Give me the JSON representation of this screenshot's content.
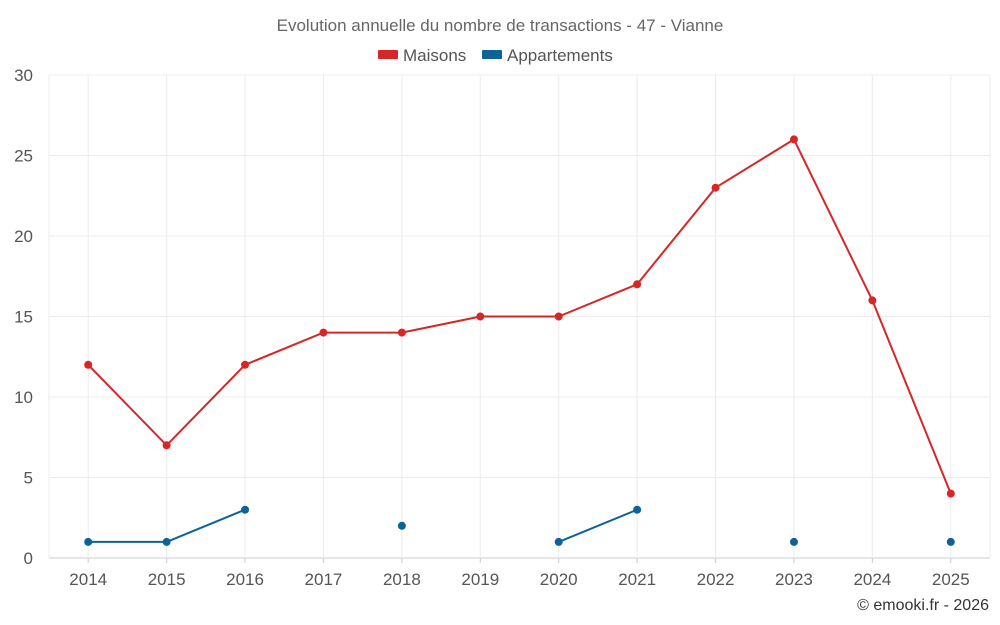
{
  "chart_data": {
    "type": "line",
    "title": "Evolution annuelle du nombre de transactions - 47 - Vianne",
    "categories": [
      "2014",
      "2015",
      "2016",
      "2017",
      "2018",
      "2019",
      "2020",
      "2021",
      "2022",
      "2023",
      "2024",
      "2025"
    ],
    "ylim": [
      0,
      30
    ],
    "yticks": [
      "0",
      "5",
      "10",
      "15",
      "20",
      "25",
      "30"
    ],
    "legend_position": "top-center",
    "series": [
      {
        "name": "Maisons",
        "color": "#d62728",
        "values": [
          12,
          7,
          12,
          14,
          14,
          15,
          15,
          17,
          23,
          26,
          16,
          4
        ]
      },
      {
        "name": "Appartements",
        "color": "#0d6398",
        "values": [
          1,
          1,
          3,
          null,
          2,
          null,
          1,
          3,
          null,
          1,
          null,
          1
        ]
      }
    ],
    "credit": "© emooki.fr - 2026"
  }
}
